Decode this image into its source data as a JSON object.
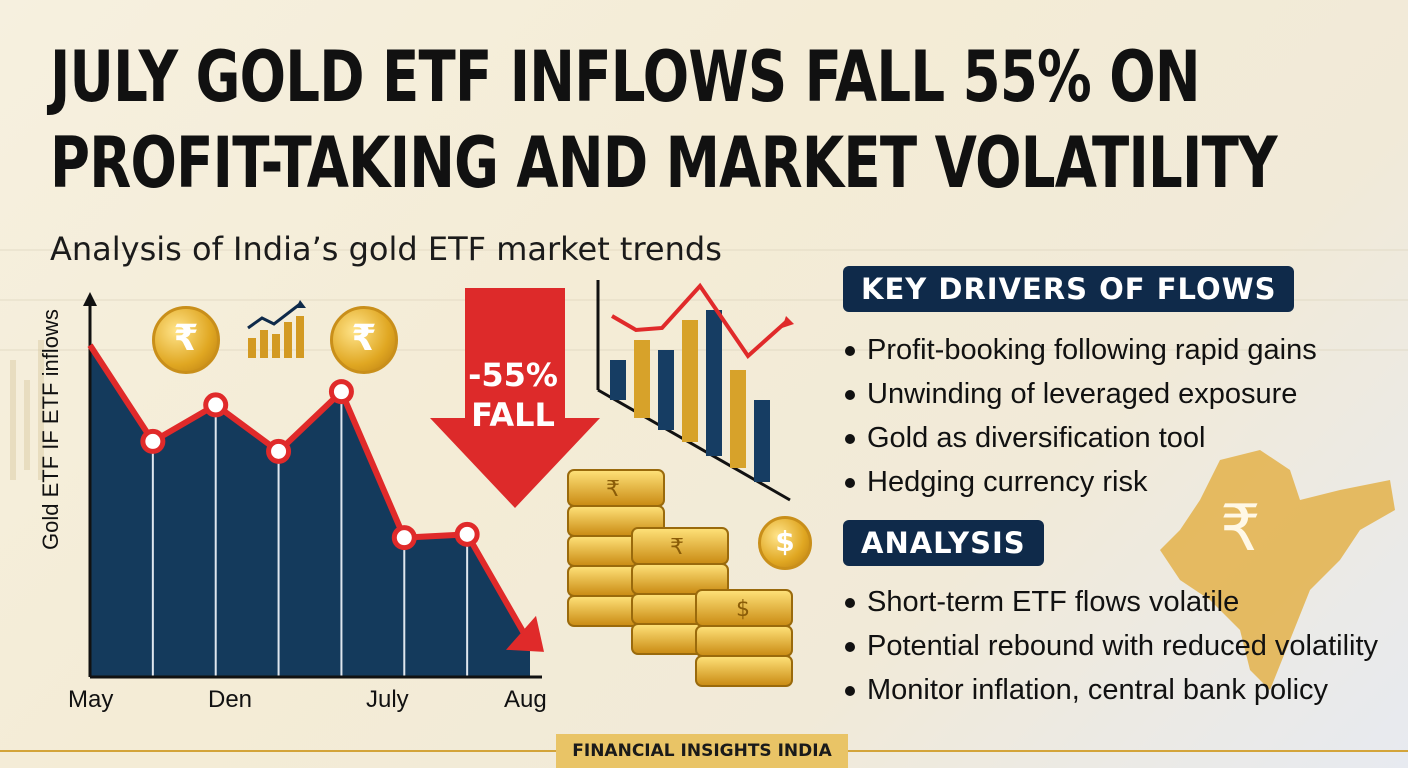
{
  "headline": {
    "line1": "JULY GOLD ETF INFLOWS FALL 55% ON",
    "line2": "PROFIT-TAKING AND MARKET VOLATILITY"
  },
  "subtitle": "Analysis of India’s gold ETF market trends",
  "fall_badge": {
    "line1": "-55%",
    "line2": "FALL"
  },
  "key_drivers": {
    "title": "KEY DRIVERS OF FLOWS",
    "items": [
      "Profit-booking following rapid gains",
      "Unwinding of leveraged exposure",
      "Gold as diversification tool",
      "Hedging currency risk"
    ]
  },
  "analysis": {
    "title": "ANALYSIS",
    "items": [
      "Short-term ETF flows volatile",
      "Potential rebound with reduced volatility",
      "Monitor inflation, central bank policy"
    ]
  },
  "footer": "FINANCIAL INSIGHTS INDIA",
  "icons": [
    "rupee-coin-icon",
    "bar-chart-up-icon",
    "rupee-coin-icon",
    "dollar-coin-icon",
    "gold-bars-icon",
    "india-map-icon"
  ],
  "colors": {
    "navy": "#0f2a4a",
    "red": "#e02a2a",
    "gold": "#e0a722",
    "area": "#143a5c"
  },
  "chart_data": {
    "type": "area",
    "xlabel": "",
    "ylabel": "Gold ETF IF ETF inflows",
    "x_tick_labels": [
      "May",
      "Den",
      "July",
      "Aug"
    ],
    "series": [
      {
        "values": [
          100,
          71,
          82,
          68,
          86,
          42,
          43,
          10
        ]
      }
    ],
    "ylim": [
      0,
      110
    ],
    "grid": false
  }
}
